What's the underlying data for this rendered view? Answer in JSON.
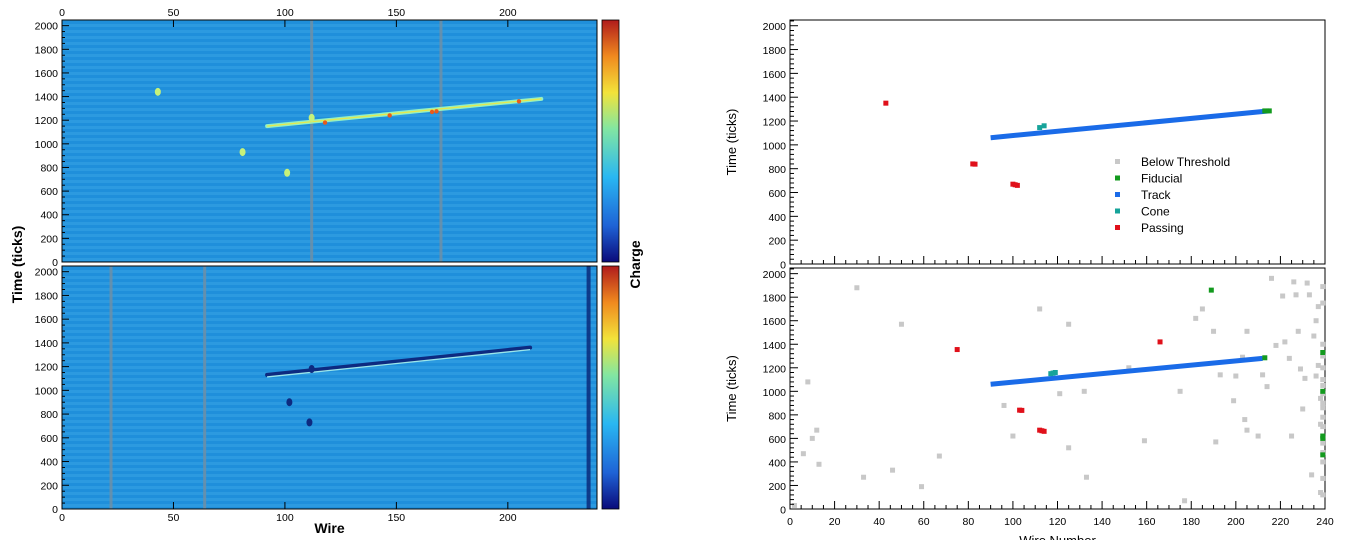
{
  "colors": {
    "background_field": "#1f8fdb",
    "track_blue": "#1a6be8",
    "fiducial_green": "#139a1e",
    "cone_teal": "#16a39a",
    "passing_red": "#e0101a",
    "below_gray": "#c8c8c8"
  },
  "chart_data": [
    {
      "id": "left_top",
      "type": "heatmap",
      "title": "",
      "xlabel": "",
      "ylabel": "",
      "xlim": [
        0,
        240
      ],
      "ylim": [
        0,
        2048
      ],
      "xticks": [
        "0",
        "50",
        "100",
        "150",
        "200"
      ],
      "yticks": [
        "0",
        "200",
        "400",
        "600",
        "800",
        "1000",
        "1200",
        "1400",
        "1600",
        "1800",
        "2000"
      ],
      "x_axis_position": "top",
      "track": {
        "x_start": 92,
        "y_start": 1150,
        "x_end": 215,
        "y_end": 1380
      },
      "features": [
        {
          "x": 112,
          "y": 1220
        },
        {
          "x": 101,
          "y": 755
        },
        {
          "x": 81,
          "y": 930
        },
        {
          "x": 43,
          "y": 1440
        }
      ],
      "dead_wires": [
        112,
        170
      ]
    },
    {
      "id": "left_bottom",
      "type": "heatmap",
      "xlabel": "Wire",
      "ylabel": "Time (ticks)",
      "xlim": [
        0,
        240
      ],
      "ylim": [
        0,
        2048
      ],
      "xticks": [
        "0",
        "50",
        "100",
        "150",
        "200"
      ],
      "yticks": [
        "0",
        "200",
        "400",
        "600",
        "800",
        "1000",
        "1200",
        "1400",
        "1600",
        "1800",
        "2000"
      ],
      "track": {
        "x_start": 92,
        "y_start": 1130,
        "x_end": 210,
        "y_end": 1360
      },
      "features": [
        {
          "x": 112,
          "y": 1180
        },
        {
          "x": 102,
          "y": 900
        },
        {
          "x": 111,
          "y": 730
        }
      ],
      "dead_wires": [
        22,
        64,
        236
      ]
    },
    {
      "type": "colorbar",
      "label": "Charge",
      "colors": [
        "#0a0a7a",
        "#1f63d6",
        "#29b7f2",
        "#82e6a2",
        "#f2e33a",
        "#f08a1f",
        "#b01b1b"
      ]
    },
    {
      "id": "right_top",
      "type": "scatter",
      "xlabel": "",
      "ylabel": "Time (ticks)",
      "xlim": [
        0,
        240
      ],
      "ylim": [
        0,
        2048
      ],
      "xticks": [],
      "yticks": [
        "0",
        "200",
        "400",
        "600",
        "800",
        "1000",
        "1200",
        "1400",
        "1600",
        "1800",
        "2000"
      ],
      "legend": {
        "placement": "center-right",
        "entries": [
          "Below Threshold",
          "Fiducial",
          "Track",
          "Cone",
          "Passing"
        ]
      },
      "series": [
        {
          "name": "Track",
          "color": "#1a6be8",
          "line": [
            [
              90,
              1060
            ],
            [
              215,
              1285
            ]
          ]
        },
        {
          "name": "Fiducial",
          "color": "#139a1e",
          "points": [
            [
              213,
              1285
            ],
            [
              215,
              1285
            ]
          ]
        },
        {
          "name": "Cone",
          "color": "#16a39a",
          "points": [
            [
              112,
              1145
            ],
            [
              114,
              1160
            ]
          ]
        },
        {
          "name": "Passing",
          "color": "#e0101a",
          "points": [
            [
              43,
              1350
            ],
            [
              82,
              840
            ],
            [
              83,
              838
            ],
            [
              100,
              670
            ],
            [
              101,
              665
            ],
            [
              102,
              660
            ]
          ]
        }
      ]
    },
    {
      "id": "right_bottom",
      "type": "scatter",
      "xlabel": "Wire Number",
      "ylabel": "Time (ticks)",
      "xlim": [
        0,
        240
      ],
      "ylim": [
        0,
        2048
      ],
      "xticks": [
        "0",
        "20",
        "40",
        "60",
        "80",
        "100",
        "120",
        "140",
        "160",
        "180",
        "200",
        "220",
        "240"
      ],
      "yticks": [
        "0",
        "200",
        "400",
        "600",
        "800",
        "1000",
        "1200",
        "1400",
        "1600",
        "1800",
        "2000"
      ],
      "series": [
        {
          "name": "Track",
          "color": "#1a6be8",
          "line": [
            [
              90,
              1060
            ],
            [
              212,
              1280
            ]
          ]
        },
        {
          "name": "Cone",
          "color": "#16a39a",
          "points": [
            [
              117,
              1150
            ],
            [
              118,
              1155
            ],
            [
              119,
              1160
            ]
          ]
        },
        {
          "name": "Passing",
          "color": "#e0101a",
          "points": [
            [
              75,
              1355
            ],
            [
              166,
              1420
            ],
            [
              103,
              840
            ],
            [
              104,
              838
            ],
            [
              112,
              670
            ],
            [
              113,
              665
            ],
            [
              114,
              660
            ]
          ]
        },
        {
          "name": "Fiducial",
          "color": "#139a1e",
          "points": [
            [
              189,
              1860
            ],
            [
              213,
              1285
            ],
            [
              239,
              1330
            ],
            [
              239,
              1000
            ],
            [
              239,
              620
            ],
            [
              239,
              600
            ],
            [
              239,
              460
            ]
          ]
        },
        {
          "name": "Below Threshold",
          "color": "#c8c8c8",
          "points": [
            [
              2,
              30
            ],
            [
              6,
              470
            ],
            [
              8,
              1080
            ],
            [
              10,
              600
            ],
            [
              12,
              670
            ],
            [
              13,
              380
            ],
            [
              30,
              1880
            ],
            [
              33,
              270
            ],
            [
              46,
              330
            ],
            [
              50,
              1570
            ],
            [
              59,
              190
            ],
            [
              67,
              450
            ],
            [
              96,
              880
            ],
            [
              100,
              620
            ],
            [
              112,
              1700
            ],
            [
              121,
              980
            ],
            [
              125,
              1570
            ],
            [
              125,
              520
            ],
            [
              132,
              1000
            ],
            [
              133,
              270
            ],
            [
              152,
              1200
            ],
            [
              159,
              580
            ],
            [
              175,
              1000
            ],
            [
              177,
              70
            ],
            [
              182,
              1620
            ],
            [
              185,
              1700
            ],
            [
              190,
              1510
            ],
            [
              191,
              570
            ],
            [
              193,
              1140
            ],
            [
              199,
              920
            ],
            [
              200,
              1130
            ],
            [
              203,
              1290
            ],
            [
              205,
              670
            ],
            [
              204,
              760
            ],
            [
              205,
              1510
            ],
            [
              210,
              620
            ],
            [
              212,
              1140
            ],
            [
              214,
              1040
            ],
            [
              216,
              1960
            ],
            [
              218,
              1390
            ],
            [
              221,
              1810
            ],
            [
              222,
              1420
            ],
            [
              224,
              1280
            ],
            [
              225,
              620
            ],
            [
              226,
              1930
            ],
            [
              227,
              1820
            ],
            [
              228,
              1510
            ],
            [
              229,
              1190
            ],
            [
              230,
              850
            ],
            [
              231,
              1110
            ],
            [
              232,
              1920
            ],
            [
              233,
              1820
            ],
            [
              234,
              290
            ],
            [
              235,
              1470
            ],
            [
              236,
              1130
            ],
            [
              236,
              1600
            ],
            [
              237,
              1220
            ],
            [
              237,
              1720
            ],
            [
              238,
              940
            ],
            [
              238,
              720
            ],
            [
              238,
              140
            ],
            [
              239,
              1890
            ],
            [
              239,
              1750
            ],
            [
              239,
              1400
            ],
            [
              239,
              1300
            ],
            [
              239,
              1200
            ],
            [
              239,
              1100
            ],
            [
              239,
              1050
            ],
            [
              239,
              980
            ],
            [
              239,
              900
            ],
            [
              239,
              860
            ],
            [
              239,
              780
            ],
            [
              239,
              700
            ],
            [
              239,
              560
            ],
            [
              239,
              480
            ],
            [
              239,
              400
            ],
            [
              239,
              260
            ],
            [
              239,
              120
            ]
          ]
        }
      ]
    }
  ]
}
